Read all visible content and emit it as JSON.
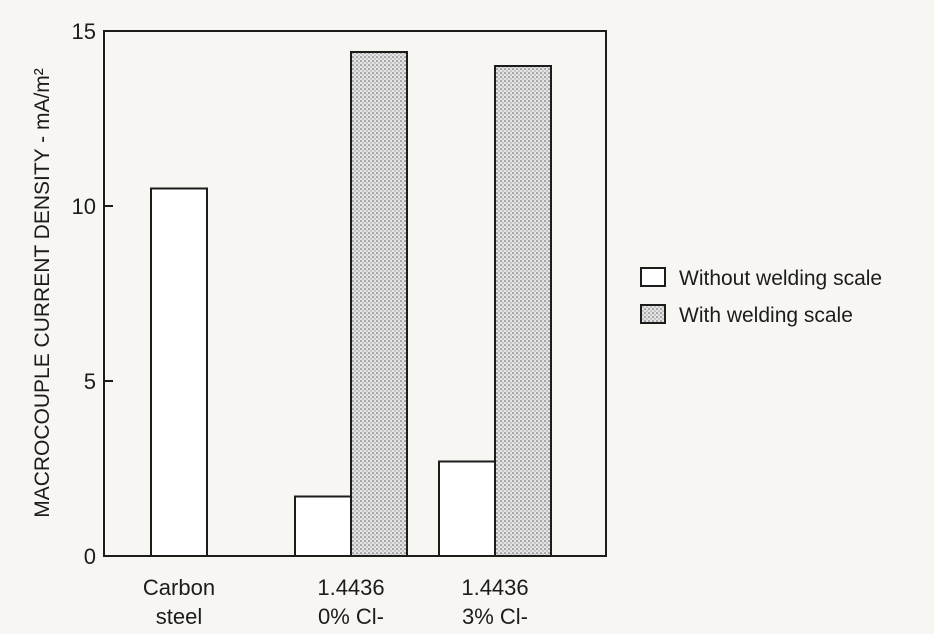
{
  "chart_data": {
    "type": "bar",
    "ylabel": "MACROCOUPLE CURRENT DENSITY - mA/m²",
    "xlabel": "",
    "ylim": [
      0,
      15
    ],
    "yticks": [
      0,
      5,
      10,
      15
    ],
    "categories": [
      [
        "Carbon",
        "steel"
      ],
      [
        "1.4436",
        "0% Cl-"
      ],
      [
        "1.4436",
        "3% Cl-"
      ]
    ],
    "series": [
      {
        "name": "Without welding scale",
        "fill": "white",
        "values": [
          10.5,
          1.7,
          2.7
        ]
      },
      {
        "name": "With welding scale",
        "fill": "stippled",
        "values": [
          null,
          14.4,
          14.0
        ]
      }
    ],
    "legend_position": "right",
    "grid": false,
    "colors": {
      "background": "#f7f6f2",
      "ink": "#1c1c1c",
      "stipple_base": "#e4e4e4",
      "stipple_dot": "#555555"
    }
  }
}
